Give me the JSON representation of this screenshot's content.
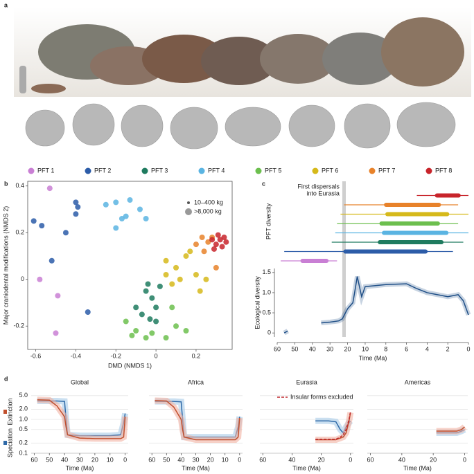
{
  "panel_labels": [
    "a",
    "b",
    "c",
    "d"
  ],
  "chart_data": [
    {
      "type": "scatter",
      "xlabel": "DMD (NMDS 1)",
      "ylabel": "Major craniodental modifications (NMDS 2)",
      "xlim": [
        -0.64,
        0.38
      ],
      "ylim": [
        -0.3,
        0.42
      ],
      "xticks": [
        -0.6,
        -0.4,
        -0.2,
        0,
        0.2
      ],
      "yticks": [
        -0.2,
        0,
        0.2,
        0.4
      ],
      "size_legend": [
        "10–400 kg",
        ">8,000 kg"
      ],
      "series": [
        {
          "name": "PFT 1",
          "color": "#c97fd4",
          "x": [
            -0.49,
            -0.5,
            -0.53,
            -0.58
          ],
          "values": [
            -0.07,
            -0.23,
            0.39,
            0.0
          ]
        },
        {
          "name": "PFT 2",
          "color": "#2c5ca8",
          "x": [
            -0.61,
            -0.57,
            -0.45,
            -0.4,
            -0.39,
            -0.4,
            -0.52,
            -0.34
          ],
          "values": [
            0.25,
            0.23,
            0.2,
            0.33,
            0.31,
            0.28,
            0.08,
            -0.14
          ]
        },
        {
          "name": "PFT 3",
          "color": "#1f7b5f",
          "x": [
            -0.05,
            -0.02,
            0.0,
            -0.07,
            -0.03,
            0.02,
            -0.1,
            0.0,
            -0.04
          ],
          "values": [
            -0.05,
            -0.08,
            -0.12,
            -0.15,
            -0.17,
            -0.03,
            -0.12,
            -0.18,
            -0.02
          ]
        },
        {
          "name": "PFT 4",
          "color": "#5ab4e2",
          "x": [
            -0.25,
            -0.2,
            -0.13,
            -0.08,
            -0.15,
            -0.17,
            -0.05,
            -0.2
          ],
          "values": [
            0.32,
            0.33,
            0.34,
            0.3,
            0.27,
            0.26,
            0.26,
            0.22
          ]
        },
        {
          "name": "PFT 5",
          "color": "#6cbf4e",
          "x": [
            -0.15,
            -0.1,
            -0.02,
            0.05,
            0.1,
            0.15,
            -0.05,
            0.08,
            -0.12
          ],
          "values": [
            -0.18,
            -0.22,
            -0.23,
            -0.25,
            -0.2,
            -0.22,
            -0.25,
            -0.12,
            -0.24
          ]
        },
        {
          "name": "PFT 6",
          "color": "#d6b91a",
          "x": [
            0.05,
            0.1,
            0.15,
            0.2,
            0.08,
            0.17,
            0.12,
            0.25,
            0.05,
            0.22
          ],
          "values": [
            0.02,
            0.05,
            0.1,
            0.02,
            -0.02,
            0.12,
            0.0,
            0.0,
            0.08,
            -0.05
          ]
        },
        {
          "name": "PFT 7",
          "color": "#e8822a",
          "x": [
            0.2,
            0.23,
            0.26,
            0.28,
            0.24,
            0.3
          ],
          "values": [
            0.15,
            0.18,
            0.16,
            0.18,
            0.12,
            0.05
          ]
        },
        {
          "name": "PFT 8",
          "color": "#c8242b",
          "x": [
            0.28,
            0.3,
            0.32,
            0.33,
            0.35,
            0.31,
            0.34,
            0.29
          ],
          "values": [
            0.17,
            0.15,
            0.17,
            0.14,
            0.16,
            0.19,
            0.18,
            0.13
          ]
        }
      ]
    },
    {
      "type": "line",
      "range_label": "PFT diversity",
      "ylabel": "Ecological diversity",
      "xlabel": "Time (Ma)",
      "annotation": [
        "First dispersals",
        "into Eurasia"
      ],
      "band": [
        23,
        21
      ],
      "band_color": "#cfcfcf",
      "ranges": [
        [
          58,
          26
        ],
        [
          56,
          1.5
        ],
        [
          29,
          0.5
        ],
        [
          27,
          0
        ],
        [
          26,
          1
        ],
        [
          24,
          0
        ],
        [
          22,
          1
        ],
        [
          5,
          0
        ]
      ],
      "xlim": [
        60,
        0
      ],
      "xbreak": 10,
      "xticks": [
        60,
        50,
        40,
        30,
        20,
        10,
        8,
        6,
        4,
        2,
        0
      ],
      "ylim": [
        -0.1,
        1.6
      ],
      "yticks": [
        0,
        {
          "value": 0.5,
          "label": "0.5"
        },
        {
          "value": 1,
          "label": "1.0"
        },
        1.5
      ],
      "color": "#1f4f87",
      "x": [
        56,
        54,
        41,
        35,
        30,
        25,
        23,
        20,
        17,
        16,
        14.5,
        14,
        12,
        10,
        8,
        6,
        5,
        4,
        3,
        2,
        1,
        0.5,
        0
      ],
      "values": [
        0.0,
        0.05,
        null,
        0.25,
        0.27,
        0.3,
        0.35,
        0.6,
        0.75,
        1.0,
        1.4,
        1.3,
        0.9,
        1.15,
        1.2,
        1.22,
        1.1,
        1.0,
        0.95,
        0.9,
        0.95,
        0.8,
        0.45
      ]
    },
    {
      "type": "multi_line",
      "log": true,
      "xlabel": "Time (Ma)",
      "xlim": [
        62,
        -2
      ],
      "ylim": [
        0.1,
        6
      ],
      "yticks": [
        0.1,
        0.2,
        0.5,
        {
          "value": 1,
          "label": "1.0"
        },
        {
          "value": 2,
          "label": "2.0"
        },
        {
          "value": 5,
          "label": "5.0"
        }
      ],
      "series": [
        {
          "name": "Speciation",
          "color": "#2f6aa8",
          "band_color": "#a9cbe8"
        },
        {
          "name": "Extinction",
          "color": "#c1502e",
          "band_color": "#f2b3a3"
        },
        {
          "name": "Insular forms excluded",
          "color": "#c0282e",
          "dash": true
        }
      ],
      "panels": [
        {
          "title": "Global",
          "xticks": [
            60,
            50,
            40,
            30,
            20,
            10,
            0
          ],
          "x": [
            58,
            50,
            45,
            40,
            39,
            38,
            30,
            20,
            10,
            3,
            1,
            0
          ],
          "values": [
            [
              3.5,
              3.5,
              3.5,
              3.4,
              1.0,
              0.35,
              0.33,
              0.33,
              0.33,
              0.35,
              0.8,
              1.5
            ],
            [
              3.8,
              3.7,
              2.5,
              1.2,
              0.6,
              0.35,
              0.28,
              0.27,
              0.27,
              0.27,
              0.3,
              1.2
            ]
          ]
        },
        {
          "title": "Africa",
          "xticks": [
            60,
            50,
            40,
            30,
            20,
            10,
            0
          ],
          "x": [
            58,
            50,
            45,
            40,
            39,
            38,
            30,
            20,
            10,
            3,
            1,
            0
          ],
          "values": [
            [
              3.4,
              3.4,
              3.4,
              3.3,
              1.0,
              0.3,
              0.3,
              0.3,
              0.3,
              0.3,
              0.6,
              1.2
            ],
            [
              3.6,
              3.5,
              2.3,
              1.0,
              0.5,
              0.3,
              0.25,
              0.25,
              0.25,
              0.25,
              0.3,
              1.1
            ]
          ]
        },
        {
          "title": "Eurasia",
          "xticks": [
            60,
            40,
            20,
            0
          ],
          "x": [
            24,
            20,
            15,
            10,
            7,
            5,
            3,
            1,
            0
          ],
          "values": [
            [
              0.9,
              0.9,
              0.9,
              0.85,
              0.5,
              0.4,
              0.6,
              0.8,
              0.9
            ],
            [
              0.25,
              0.25,
              0.25,
              0.25,
              0.28,
              0.3,
              0.4,
              0.9,
              1.6
            ],
            [
              0.26,
              0.26,
              0.26,
              0.26,
              0.3,
              0.35,
              0.5,
              1.0,
              1.7
            ]
          ]
        },
        {
          "title": "Americas",
          "xticks": [
            60,
            40,
            20,
            0
          ],
          "x": [
            18,
            15,
            10,
            5,
            2,
            0
          ],
          "values": [
            [
              0.4,
              0.4,
              0.4,
              0.4,
              0.45,
              0.5
            ],
            [
              0.45,
              0.45,
              0.45,
              0.45,
              0.5,
              0.6
            ]
          ]
        }
      ]
    }
  ]
}
